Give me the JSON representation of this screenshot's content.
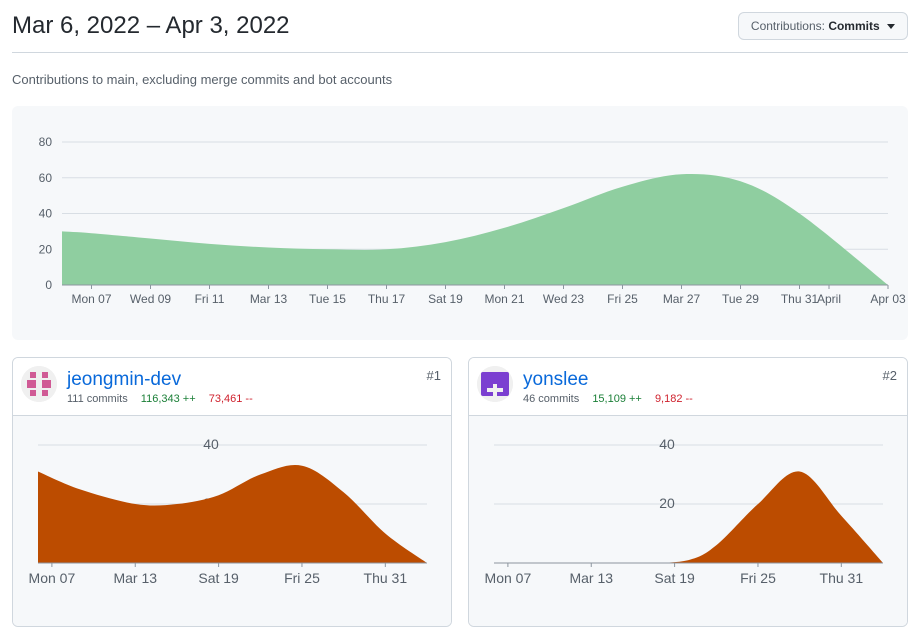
{
  "header": {
    "date_range": "Mar 6, 2022 – Apr 3, 2022",
    "contrib_label": "Contributions:",
    "contrib_value": "Commits"
  },
  "subtitle": "Contributions to main, excluding merge commits and bot accounts",
  "colors": {
    "area_main": "#8fcea0",
    "area_user": "#bc4c00",
    "link": "#0969da",
    "additions": "#1a7f37",
    "deletions": "#cf222e"
  },
  "chart_data": [
    {
      "type": "area",
      "title": "",
      "xlabel": "",
      "ylabel": "",
      "x": [
        "Mar 06",
        "Mar 07",
        "Mar 09",
        "Mar 11",
        "Mar 13",
        "Mar 15",
        "Mar 17",
        "Mar 19",
        "Mar 21",
        "Mar 23",
        "Mar 25",
        "Mar 27",
        "Mar 29",
        "Mar 31",
        "Apr 03"
      ],
      "y": [
        30,
        29,
        26,
        23,
        21,
        20,
        20,
        24,
        32,
        43,
        55,
        62,
        58,
        40,
        0
      ],
      "x_ticks": [
        "Mon 07",
        "Wed 09",
        "Fri 11",
        "Mar 13",
        "Tue 15",
        "Thu 17",
        "Sat 19",
        "Mon 21",
        "Wed 23",
        "Fri 25",
        "Mar 27",
        "Tue 29",
        "Thu 31",
        "April",
        "Apr 03"
      ],
      "ylim": [
        0,
        80
      ],
      "y_ticks": [
        0,
        20,
        40,
        60,
        80
      ],
      "grid": true
    },
    {
      "type": "area",
      "title": "",
      "xlabel": "",
      "ylabel": "",
      "x": [
        "Mar 06",
        "Mar 09",
        "Mar 13",
        "Mar 16",
        "Mar 19",
        "Mar 22",
        "Mar 25",
        "Mar 28",
        "Mar 31",
        "Apr 03"
      ],
      "y": [
        31,
        25,
        20,
        20,
        23,
        30,
        33,
        24,
        10,
        0
      ],
      "x_ticks": [
        "Mon 07",
        "Mar 13",
        "Sat 19",
        "Fri 25",
        "Thu 31"
      ],
      "ylim": [
        0,
        40
      ],
      "y_ticks": [
        20,
        40
      ],
      "y_tick_labels": [
        "20",
        "40"
      ],
      "grid": true
    },
    {
      "type": "area",
      "title": "",
      "xlabel": "",
      "ylabel": "",
      "x": [
        "Mar 06",
        "Mar 09",
        "Mar 13",
        "Mar 17",
        "Mar 20",
        "Mar 22",
        "Mar 25",
        "Mar 28",
        "Mar 31",
        "Apr 03"
      ],
      "y": [
        0,
        0,
        0,
        0,
        1,
        6,
        20,
        31,
        16,
        0
      ],
      "x_ticks": [
        "Mon 07",
        "Mar 13",
        "Sat 19",
        "Fri 25",
        "Thu 31"
      ],
      "ylim": [
        0,
        40
      ],
      "y_ticks": [
        20,
        40
      ],
      "y_tick_labels": [
        "20",
        "40"
      ],
      "grid": true
    }
  ],
  "contributors": [
    {
      "name": "jeongmin-dev",
      "commits": "111 commits",
      "additions": "116,343 ++",
      "deletions": "73,461 --",
      "rank": "#1"
    },
    {
      "name": "yonslee",
      "commits": "46 commits",
      "additions": "15,109 ++",
      "deletions": "9,182 --",
      "rank": "#2"
    }
  ]
}
